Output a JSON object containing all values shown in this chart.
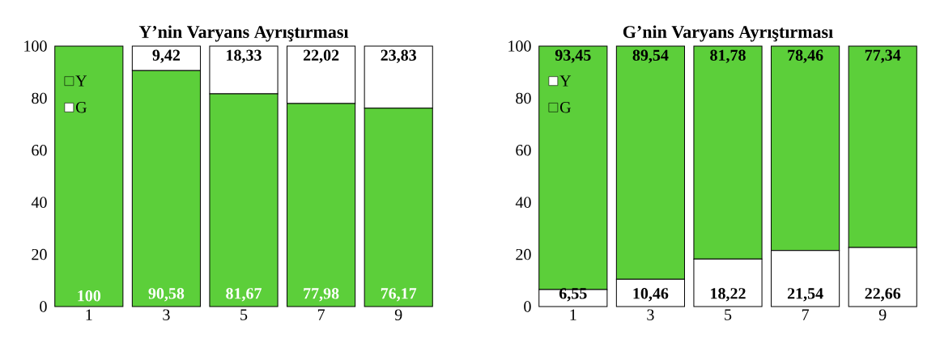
{
  "chart_data": [
    {
      "type": "bar",
      "stacked": true,
      "title": "Y’nin Varyans Ayrıştırması",
      "categories": [
        "1",
        "3",
        "5",
        "7",
        "9"
      ],
      "ylim": [
        0,
        100
      ],
      "yticks": [
        0,
        20,
        40,
        60,
        80,
        100
      ],
      "legend": "top left",
      "series": [
        {
          "name": "Y",
          "color": "#5ccf3a",
          "values": [
            100,
            90.58,
            81.67,
            77.98,
            76.17
          ],
          "value_labels": [
            "100",
            "90,58",
            "81,67",
            "77,98",
            "76,17"
          ]
        },
        {
          "name": "G",
          "color": "#ffffff",
          "values": [
            0,
            9.42,
            18.33,
            22.02,
            23.83
          ],
          "value_labels": [
            null,
            "9,42",
            "18,33",
            "22,02",
            "23,83"
          ]
        }
      ]
    },
    {
      "type": "bar",
      "stacked": true,
      "title": "G’nin Varyans Ayrıştırması",
      "categories": [
        "1",
        "3",
        "5",
        "7",
        "9"
      ],
      "ylim": [
        0,
        100
      ],
      "yticks": [
        0,
        20,
        40,
        60,
        80,
        100
      ],
      "legend": "top left",
      "series": [
        {
          "name": "Y",
          "color": "#ffffff",
          "values": [
            6.55,
            10.46,
            18.22,
            21.54,
            22.66
          ],
          "value_labels": [
            "6,55",
            "10,46",
            "18,22",
            "21,54",
            "22,66"
          ]
        },
        {
          "name": "G",
          "color": "#5ccf3a",
          "values": [
            93.45,
            89.54,
            81.78,
            78.46,
            77.34
          ],
          "value_labels": [
            "93,45",
            "89,54",
            "81,78",
            "78,46",
            "77,34"
          ]
        }
      ]
    }
  ]
}
